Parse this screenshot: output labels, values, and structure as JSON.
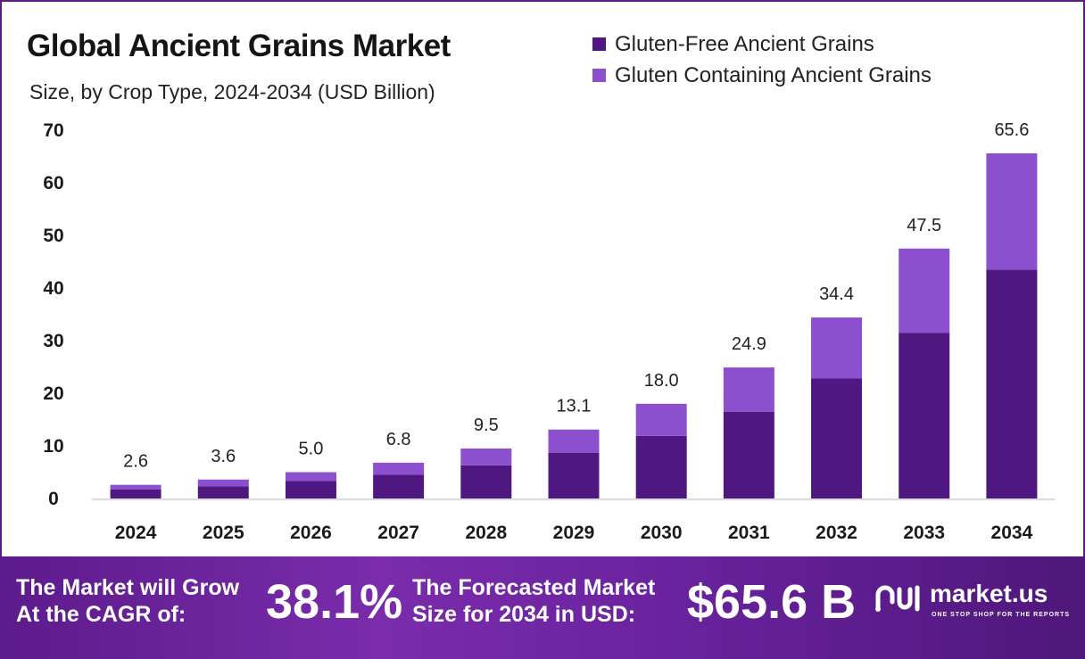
{
  "header": {
    "title": "Global Ancient Grains Market",
    "subtitle": "Size, by Crop Type, 2024-2034 (USD Billion)"
  },
  "legend": [
    {
      "label": "Gluten-Free Ancient Grains",
      "color": "#4e1880"
    },
    {
      "label": "Gluten Containing Ancient Grains",
      "color": "#8c4fce"
    }
  ],
  "chart_data": {
    "type": "bar",
    "stacked": true,
    "categories": [
      "2024",
      "2025",
      "2026",
      "2027",
      "2028",
      "2029",
      "2030",
      "2031",
      "2032",
      "2033",
      "2034"
    ],
    "series": [
      {
        "name": "Gluten-Free Ancient Grains",
        "values": [
          1.7,
          2.3,
          3.3,
          4.5,
          6.3,
          8.7,
          11.9,
          16.5,
          22.8,
          31.5,
          43.5
        ]
      },
      {
        "name": "Gluten Containing Ancient Grains",
        "values": [
          0.9,
          1.3,
          1.7,
          2.3,
          3.2,
          4.4,
          6.1,
          8.4,
          11.6,
          16.0,
          22.1
        ]
      }
    ],
    "totals": [
      "2.6",
      "3.6",
      "5.0",
      "6.8",
      "9.5",
      "13.1",
      "18.0",
      "24.9",
      "34.4",
      "47.5",
      "65.6"
    ],
    "yticks": [
      "0",
      "10",
      "20",
      "30",
      "40",
      "50",
      "60",
      "70"
    ],
    "ylim": [
      0,
      70
    ],
    "grid": false,
    "legend_position": "top-right",
    "colors": {
      "series1": "#4e1880",
      "series2": "#8c4fce",
      "axis": "#cfcfcf"
    }
  },
  "footer": {
    "cagr_text_line1": "The Market will Grow",
    "cagr_text_line2": "At the CAGR of:",
    "cagr_value": "38.1%",
    "forecast_text_line1": "The Forecasted Market",
    "forecast_text_line2": "Size for 2034 in USD:",
    "forecast_value": "$65.6 B",
    "brand_name": "market.us",
    "brand_tagline": "ONE STOP SHOP FOR THE REPORTS"
  }
}
